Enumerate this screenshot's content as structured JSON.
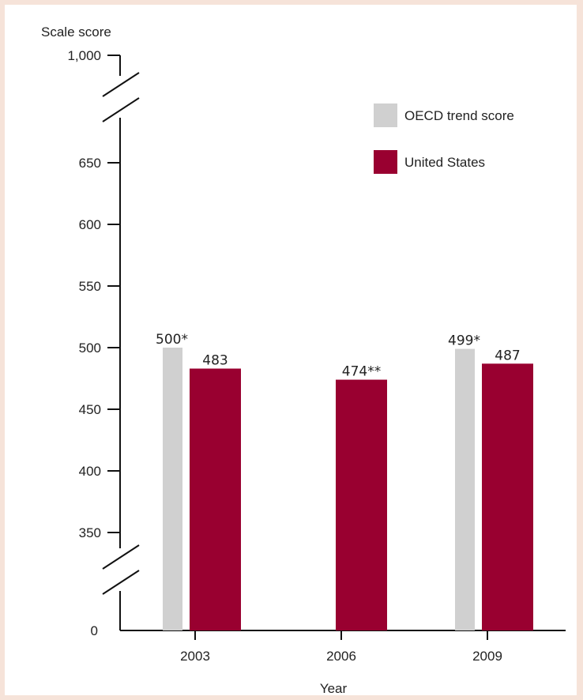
{
  "chart_data": {
    "type": "bar",
    "ylabel": "Scale score",
    "xlabel": "Year",
    "y_ticks": [
      "0",
      "350",
      "400",
      "450",
      "500",
      "550",
      "600",
      "650",
      "1,000"
    ],
    "categories": [
      "2003",
      "2006",
      "2009"
    ],
    "series": [
      {
        "name": "OECD trend score",
        "color": "#d0d0d0",
        "values": [
          500,
          null,
          499
        ],
        "labels": [
          "500*",
          "",
          "499*"
        ]
      },
      {
        "name": "United States",
        "color": "#990030",
        "values": [
          483,
          474,
          487
        ],
        "labels": [
          "483",
          "474**",
          "487"
        ]
      }
    ],
    "ylim": [
      300,
      1000
    ],
    "axis_breaks": [
      "between 650 and 1,000",
      "between 0 and 350"
    ],
    "grid": false,
    "legend": "top-right"
  }
}
